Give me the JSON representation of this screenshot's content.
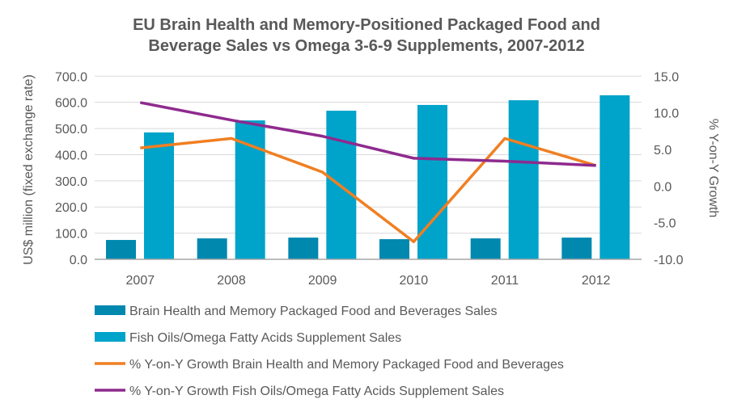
{
  "chart_data": {
    "type": "bar+line",
    "title": "EU Brain Health and Memory-Positioned Packaged Food and Beverage Sales vs Omega 3-6-9 Supplements, 2007-2012",
    "title_lines": [
      "EU Brain Health and Memory-Positioned Packaged Food and",
      "Beverage Sales vs Omega 3-6-9 Supplements, 2007-2012"
    ],
    "categories": [
      "2007",
      "2008",
      "2009",
      "2010",
      "2011",
      "2012"
    ],
    "ylabel": "US$ million (fixed exchange rate)",
    "y2label": "% Y-on-Y Growth",
    "ylim": [
      0,
      700
    ],
    "y2lim": [
      -10,
      15
    ],
    "yticks": [
      "0.0",
      "100.0",
      "200.0",
      "300.0",
      "400.0",
      "500.0",
      "600.0",
      "700.0"
    ],
    "y2ticks": [
      "-10.0",
      "-5.0",
      "0.0",
      "5.0",
      "10.0",
      "15.0"
    ],
    "grid": true,
    "legend_position": "bottom",
    "series": [
      {
        "name": "Brain Health and Memory Packaged Food and Beverages Sales",
        "kind": "bar",
        "axis": "left",
        "color": "#0088AF",
        "values": [
          74,
          80,
          83,
          77,
          80,
          83
        ]
      },
      {
        "name": "Fish Oils/Omega Fatty Acids Supplement Sales",
        "kind": "bar",
        "axis": "left",
        "color": "#00A3C9",
        "values": [
          485,
          531,
          568,
          590,
          608,
          627
        ]
      },
      {
        "name": "% Y-on-Y Growth Brain Health and Memory Packaged Food and Beverages",
        "kind": "line",
        "axis": "right",
        "color": "#F07F22",
        "values": [
          5.2,
          6.5,
          1.9,
          -7.6,
          6.5,
          2.8
        ]
      },
      {
        "name": "% Y-on-Y Growth Fish Oils/Omega Fatty Acids Supplement Sales",
        "kind": "line",
        "axis": "right",
        "color": "#8E2A8E",
        "values": [
          11.4,
          9.0,
          6.8,
          3.8,
          3.4,
          2.8
        ]
      }
    ]
  }
}
